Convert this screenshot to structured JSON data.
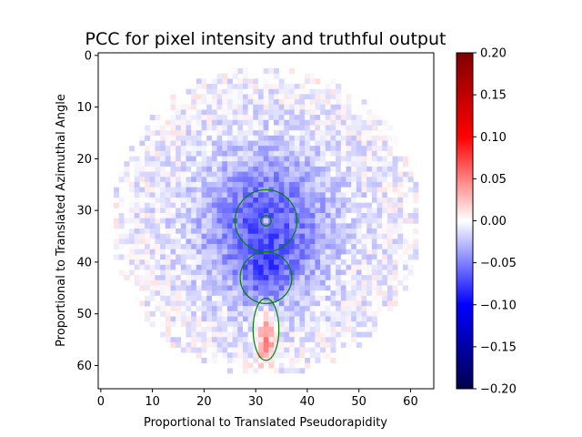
{
  "chart_data": {
    "type": "heatmap",
    "title": "PCC for pixel intensity and truthful output",
    "xlabel": "Proportional to Translated Pseudorapidity",
    "ylabel": "Proportional to Translated Azimuthal Angle",
    "grid_size": [
      65,
      65
    ],
    "xlim": [
      -0.5,
      64.5
    ],
    "ylim": [
      64.5,
      -0.5
    ],
    "x_ticks": [
      0,
      10,
      20,
      30,
      40,
      50,
      60
    ],
    "y_ticks": [
      0,
      10,
      20,
      30,
      40,
      50,
      60
    ],
    "colormap": "seismic",
    "color_limits": [
      -0.2,
      0.2
    ],
    "colorbar_ticks": [
      "0.20",
      "0.15",
      "0.10",
      "0.05",
      "0.00",
      "−0.05",
      "−0.10",
      "−0.15",
      "−0.20"
    ],
    "colorbar_tick_values": [
      0.2,
      0.15,
      0.1,
      0.05,
      0.0,
      -0.05,
      -0.1,
      -0.15,
      -0.2
    ],
    "data_region": {
      "center": [
        32,
        32
      ],
      "radius": 30
    },
    "blue_blobs": [
      {
        "cx": 32,
        "cy": 33,
        "sx": 8,
        "sy": 9,
        "amp": -0.055
      },
      {
        "cx": 32,
        "cy": 43,
        "sx": 3.5,
        "sy": 3.5,
        "amp": -0.03
      },
      {
        "cx": 32,
        "cy": 32,
        "sx": 20,
        "sy": 20,
        "amp": -0.012
      }
    ],
    "red_blobs": [
      {
        "cx": 32,
        "cy": 55,
        "sx": 1.2,
        "sy": 4,
        "amp": 0.05
      },
      {
        "cx": 32,
        "cy": 32,
        "sx": 0.6,
        "sy": 0.6,
        "amp": 0.06
      }
    ],
    "overlays": [
      {
        "shape": "circle",
        "cx": 32,
        "cy": 32,
        "rx": 6,
        "ry": 6,
        "color": "#008000"
      },
      {
        "shape": "circle",
        "cx": 32,
        "cy": 32,
        "rx": 1,
        "ry": 1,
        "color": "#008000"
      },
      {
        "shape": "circle",
        "cx": 32,
        "cy": 43,
        "rx": 5,
        "ry": 5,
        "color": "#008000"
      },
      {
        "shape": "ellipse",
        "cx": 32,
        "cy": 53,
        "rx": 2.5,
        "ry": 6,
        "color": "#008000"
      }
    ]
  }
}
